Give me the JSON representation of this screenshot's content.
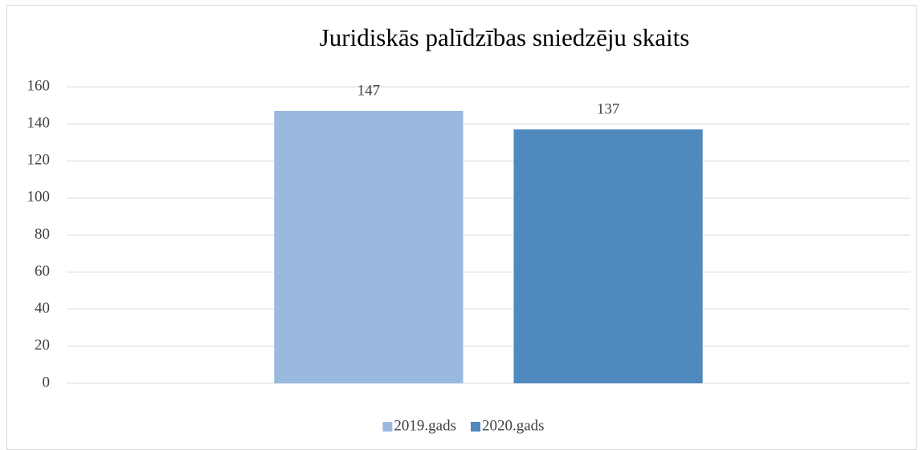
{
  "chart_data": {
    "type": "bar",
    "title": "Juridiskās palīdzības sniedzēju skaits",
    "categories": [
      null
    ],
    "series": [
      {
        "name": "2019.gads",
        "color": "#9ab9de",
        "values": [
          147
        ]
      },
      {
        "name": "2020.gads",
        "color": "#4f89bd",
        "values": [
          137
        ]
      }
    ],
    "ylim": [
      0,
      160
    ],
    "yticks": [
      0,
      20,
      40,
      60,
      80,
      100,
      120,
      140,
      160
    ],
    "grid": true,
    "legend": "bottom"
  }
}
